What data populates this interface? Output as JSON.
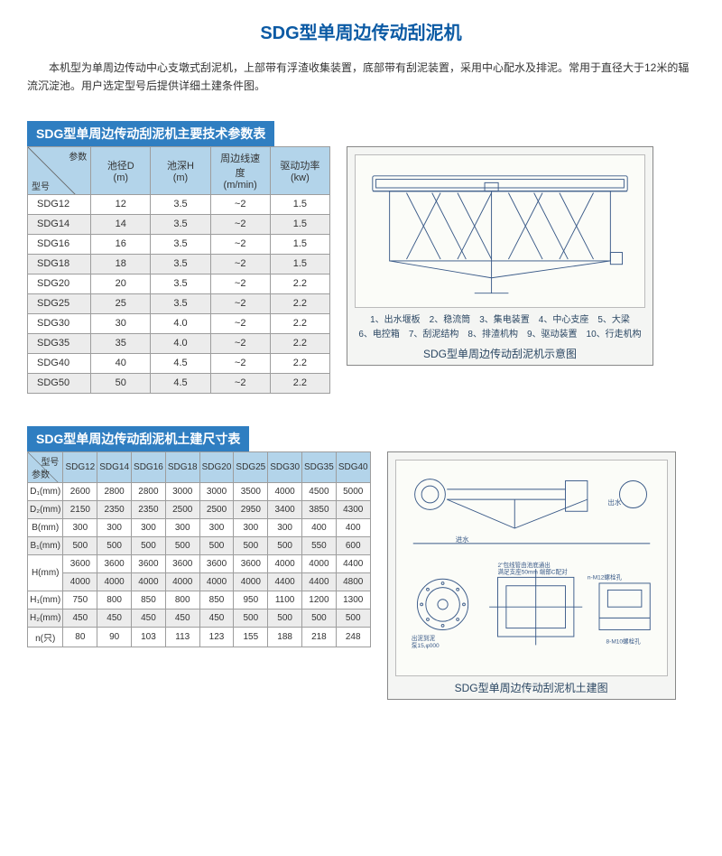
{
  "title": "SDG型单周边传动刮泥机",
  "intro": "本机型为单周边传动中心支墩式刮泥机，上部带有浮渣收集装置，底部带有刮泥装置，采用中心配水及排泥。常用于直径大于12米的辐流沉淀池。用户选定型号后提供详细土建条件图。",
  "colors": {
    "title": "#0b5aa4",
    "sectionBar": "#2f7ec1",
    "headerCell": "#b3d4ea",
    "zebra": "#ececec",
    "border": "#9d9d9d",
    "figBg": "#f4f5f3",
    "figLine": "#3a5a88"
  },
  "section1": {
    "bar": "SDG型单周边传动刮泥机主要技术参数表",
    "diagTop": "参数",
    "diagBot": "型号",
    "cols": [
      "池径D\n(m)",
      "池深H\n(m)",
      "周边线速度\n(m/min)",
      "驱动功率\n(kw)"
    ],
    "rows": [
      {
        "m": "SDG12",
        "d": "12",
        "h": "3.5",
        "v": "~2",
        "p": "1.5"
      },
      {
        "m": "SDG14",
        "d": "14",
        "h": "3.5",
        "v": "~2",
        "p": "1.5"
      },
      {
        "m": "SDG16",
        "d": "16",
        "h": "3.5",
        "v": "~2",
        "p": "1.5"
      },
      {
        "m": "SDG18",
        "d": "18",
        "h": "3.5",
        "v": "~2",
        "p": "1.5"
      },
      {
        "m": "SDG20",
        "d": "20",
        "h": "3.5",
        "v": "~2",
        "p": "2.2"
      },
      {
        "m": "SDG25",
        "d": "25",
        "h": "3.5",
        "v": "~2",
        "p": "2.2"
      },
      {
        "m": "SDG30",
        "d": "30",
        "h": "4.0",
        "v": "~2",
        "p": "2.2"
      },
      {
        "m": "SDG35",
        "d": "35",
        "h": "4.0",
        "v": "~2",
        "p": "2.2"
      },
      {
        "m": "SDG40",
        "d": "40",
        "h": "4.5",
        "v": "~2",
        "p": "2.2"
      },
      {
        "m": "SDG50",
        "d": "50",
        "h": "4.5",
        "v": "~2",
        "p": "2.2"
      }
    ],
    "legend": "1、出水堰板　2、稳流筒　3、集电装置　4、中心支座　5、大梁\n6、电控箱　7、刮泥结构　8、排渣机构　9、驱动装置　10、行走机构",
    "caption": "SDG型单周边传动刮泥机示意图"
  },
  "section2": {
    "bar": "SDG型单周边传动刮泥机土建尺寸表",
    "diagTop": "型号",
    "diagBot": "参数",
    "cols": [
      "SDG12",
      "SDG14",
      "SDG16",
      "SDG18",
      "SDG20",
      "SDG25",
      "SDG30",
      "SDG35",
      "SDG40"
    ],
    "rows": [
      {
        "p": "D₁(mm)",
        "v": [
          "2600",
          "2800",
          "2800",
          "3000",
          "3000",
          "3500",
          "4000",
          "4500",
          "5000"
        ]
      },
      {
        "p": "D₂(mm)",
        "v": [
          "2150",
          "2350",
          "2350",
          "2500",
          "2500",
          "2950",
          "3400",
          "3850",
          "4300"
        ]
      },
      {
        "p": "B(mm)",
        "v": [
          "300",
          "300",
          "300",
          "300",
          "300",
          "300",
          "300",
          "400",
          "400"
        ]
      },
      {
        "p": "B₁(mm)",
        "v": [
          "500",
          "500",
          "500",
          "500",
          "500",
          "500",
          "500",
          "550",
          "600"
        ]
      }
    ],
    "dualRow": {
      "p": "H(mm)",
      "a": [
        "3600",
        "3600",
        "3600",
        "3600",
        "3600",
        "3600",
        "4000",
        "4000",
        "4400"
      ],
      "b": [
        "4000",
        "4000",
        "4000",
        "4000",
        "4000",
        "4000",
        "4400",
        "4400",
        "4800"
      ]
    },
    "rows2": [
      {
        "p": "H₁(mm)",
        "v": [
          "750",
          "800",
          "850",
          "800",
          "850",
          "950",
          "1100",
          "1200",
          "1300"
        ]
      },
      {
        "p": "H₂(mm)",
        "v": [
          "450",
          "450",
          "450",
          "450",
          "450",
          "500",
          "500",
          "500",
          "500"
        ]
      },
      {
        "p": "n(只)",
        "v": [
          "80",
          "90",
          "103",
          "113",
          "123",
          "155",
          "188",
          "218",
          "248"
        ]
      }
    ],
    "caption": "SDG型单周边传动刮泥机土建图",
    "labels": {
      "inlet": "进水",
      "outlet": "出水",
      "shieldNote": "出泥到泥\n泵15,000",
      "pipeNote": "2\"包线管由池底通出\n满足支座50mm 端部C配对",
      "boltNote": "n-M12螺栓孔\n满足50mm圆周",
      "baseNote": "8-M10螺栓孔"
    }
  }
}
